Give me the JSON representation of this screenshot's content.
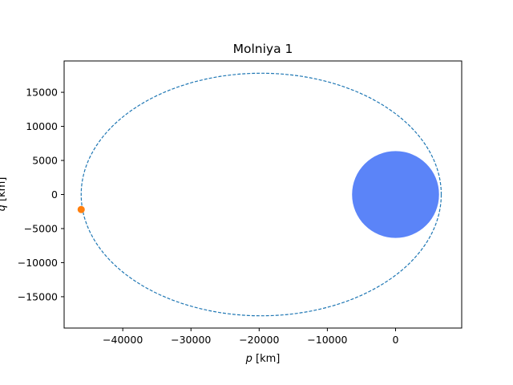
{
  "chart_data": {
    "type": "scatter",
    "title": "Molniya 1",
    "xlabel_var": "p",
    "xlabel_unit": " [km]",
    "ylabel_var": "q",
    "ylabel_unit": " [km]",
    "xlim": [
      -48600,
      9700
    ],
    "ylim": [
      -19600,
      19600
    ],
    "xticks": [
      -40000,
      -30000,
      -20000,
      -10000,
      0
    ],
    "yticks": [
      -15000,
      -10000,
      -5000,
      0,
      5000,
      10000,
      15000
    ],
    "grid": false,
    "series": [
      {
        "kind": "orbit",
        "style": "dashed",
        "color": "#1f77b4",
        "ellipse": {
          "center": [
            -19700,
            0
          ],
          "semi_major_p": 26400,
          "semi_minor_q": 17800
        }
      },
      {
        "kind": "attractor",
        "color": "#5b84f8",
        "center": [
          0,
          0
        ],
        "radius": 6378
      },
      {
        "kind": "position",
        "color": "#ff7f0e",
        "x": [
          -46100
        ],
        "y": [
          -2200
        ]
      }
    ]
  }
}
